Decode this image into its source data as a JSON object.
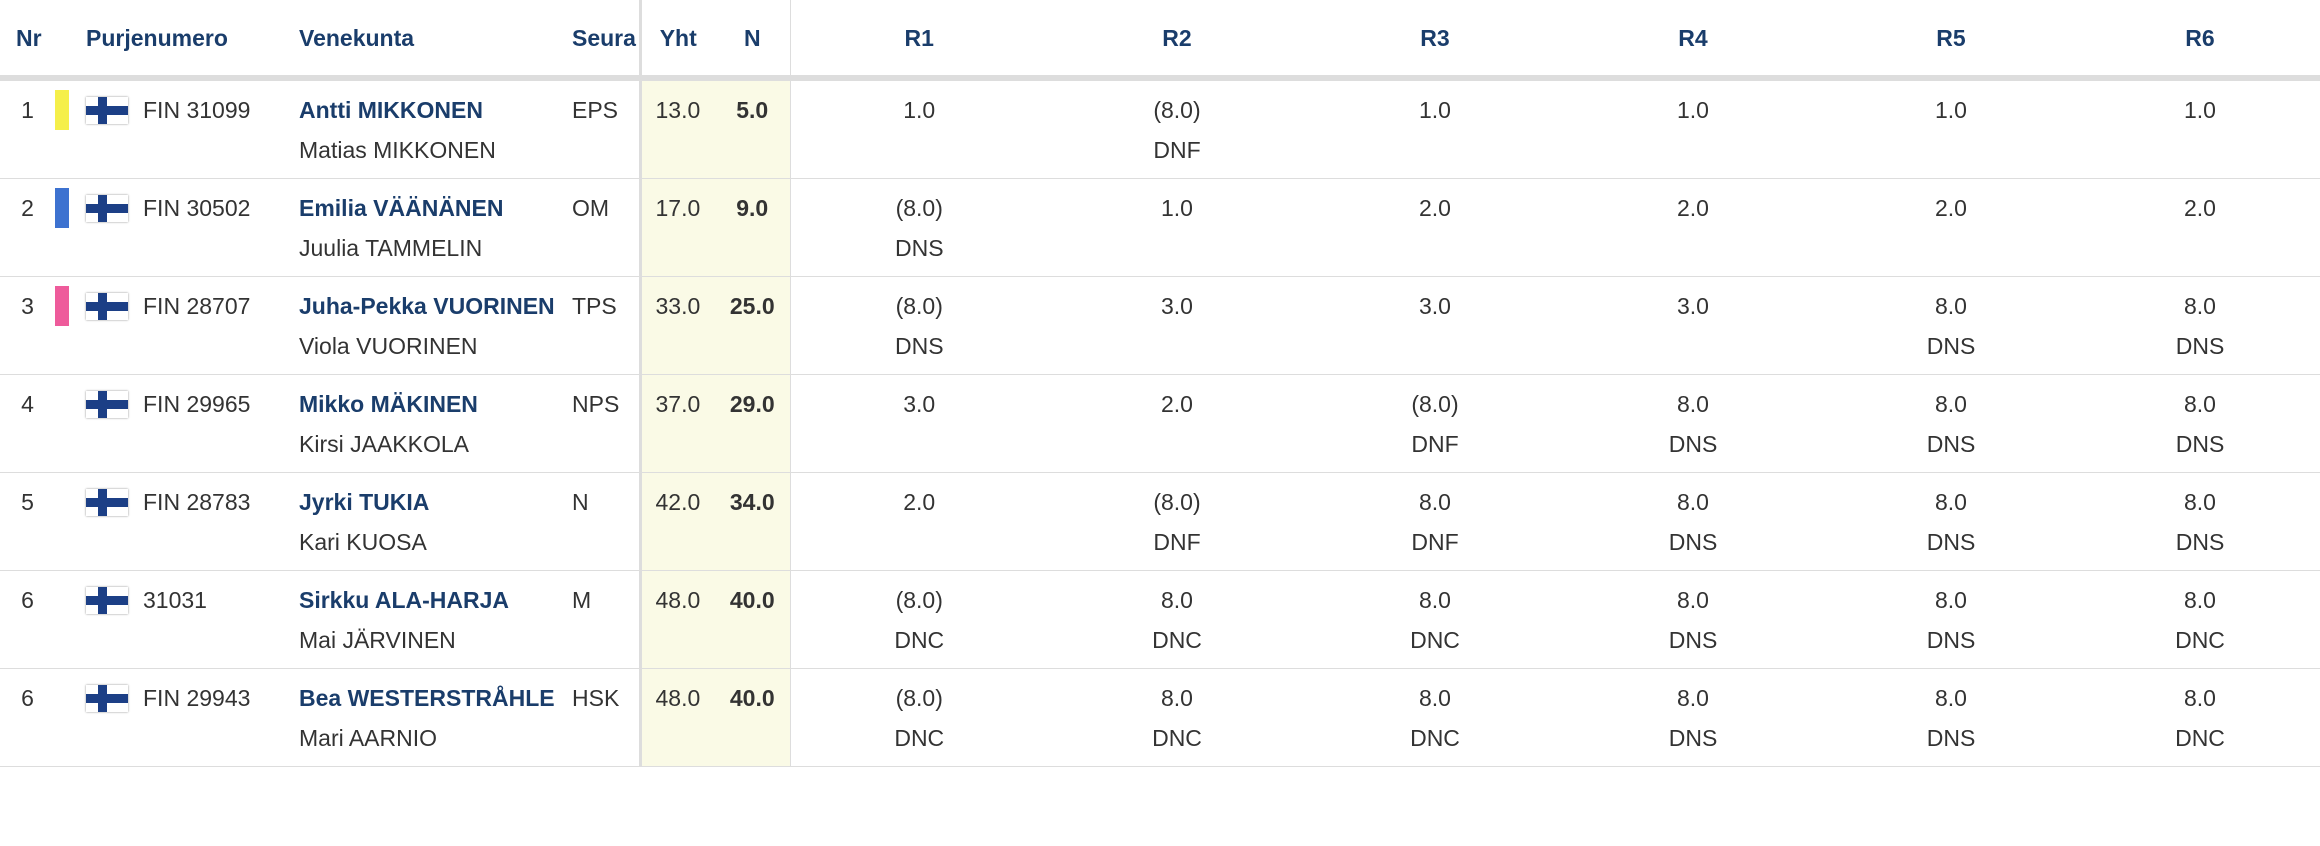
{
  "headers": {
    "nr": "Nr",
    "sail": "Purjenumero",
    "crew": "Venekunta",
    "club": "Seura",
    "total": "Yht",
    "net": "N",
    "races": [
      "R1",
      "R2",
      "R3",
      "R4",
      "R5",
      "R6"
    ]
  },
  "rows": [
    {
      "nr": "1",
      "color": "#f5ef4a",
      "flag_icon": "finland-flag-icon",
      "sail": "FIN 31099",
      "skipper": "Antti MIKKONEN",
      "crew": "Matias MIKKONEN",
      "club": "EPS",
      "total": "13.0",
      "net": "5.0",
      "races": [
        {
          "score": "1.0",
          "code": ""
        },
        {
          "score": "(8.0)",
          "code": "DNF"
        },
        {
          "score": "1.0",
          "code": ""
        },
        {
          "score": "1.0",
          "code": ""
        },
        {
          "score": "1.0",
          "code": ""
        },
        {
          "score": "1.0",
          "code": ""
        }
      ]
    },
    {
      "nr": "2",
      "color": "#3d72d0",
      "flag_icon": "finland-flag-icon",
      "sail": "FIN 30502",
      "skipper": "Emilia VÄÄNÄNEN",
      "crew": "Juulia TAMMELIN",
      "club": "OM",
      "total": "17.0",
      "net": "9.0",
      "races": [
        {
          "score": "(8.0)",
          "code": "DNS"
        },
        {
          "score": "1.0",
          "code": ""
        },
        {
          "score": "2.0",
          "code": ""
        },
        {
          "score": "2.0",
          "code": ""
        },
        {
          "score": "2.0",
          "code": ""
        },
        {
          "score": "2.0",
          "code": ""
        }
      ]
    },
    {
      "nr": "3",
      "color": "#ee5b9b",
      "flag_icon": "finland-flag-icon",
      "sail": "FIN 28707",
      "skipper": "Juha-Pekka VUORINEN",
      "crew": "Viola VUORINEN",
      "club": "TPS",
      "total": "33.0",
      "net": "25.0",
      "races": [
        {
          "score": "(8.0)",
          "code": "DNS"
        },
        {
          "score": "3.0",
          "code": ""
        },
        {
          "score": "3.0",
          "code": ""
        },
        {
          "score": "3.0",
          "code": ""
        },
        {
          "score": "8.0",
          "code": "DNS"
        },
        {
          "score": "8.0",
          "code": "DNS"
        }
      ]
    },
    {
      "nr": "4",
      "color": "",
      "flag_icon": "finland-flag-icon",
      "sail": "FIN 29965",
      "skipper": "Mikko MÄKINEN",
      "crew": "Kirsi JAAKKOLA",
      "club": "NPS",
      "total": "37.0",
      "net": "29.0",
      "races": [
        {
          "score": "3.0",
          "code": ""
        },
        {
          "score": "2.0",
          "code": ""
        },
        {
          "score": "(8.0)",
          "code": "DNF"
        },
        {
          "score": "8.0",
          "code": "DNS"
        },
        {
          "score": "8.0",
          "code": "DNS"
        },
        {
          "score": "8.0",
          "code": "DNS"
        }
      ]
    },
    {
      "nr": "5",
      "color": "",
      "flag_icon": "finland-flag-icon",
      "sail": "FIN 28783",
      "skipper": "Jyrki TUKIA",
      "crew": "Kari KUOSA",
      "club": "N",
      "total": "42.0",
      "net": "34.0",
      "races": [
        {
          "score": "2.0",
          "code": ""
        },
        {
          "score": "(8.0)",
          "code": "DNF"
        },
        {
          "score": "8.0",
          "code": "DNF"
        },
        {
          "score": "8.0",
          "code": "DNS"
        },
        {
          "score": "8.0",
          "code": "DNS"
        },
        {
          "score": "8.0",
          "code": "DNS"
        }
      ]
    },
    {
      "nr": "6",
      "color": "",
      "flag_icon": "finland-flag-icon",
      "sail": "31031",
      "skipper": "Sirkku ALA-HARJA",
      "crew": "Mai JÄRVINEN",
      "club": "M",
      "total": "48.0",
      "net": "40.0",
      "races": [
        {
          "score": "(8.0)",
          "code": "DNC"
        },
        {
          "score": "8.0",
          "code": "DNC"
        },
        {
          "score": "8.0",
          "code": "DNC"
        },
        {
          "score": "8.0",
          "code": "DNS"
        },
        {
          "score": "8.0",
          "code": "DNS"
        },
        {
          "score": "8.0",
          "code": "DNC"
        }
      ]
    },
    {
      "nr": "6",
      "color": "",
      "flag_icon": "finland-flag-icon",
      "sail": "FIN 29943",
      "skipper": "Bea WESTERSTRÅHLE",
      "crew": "Mari AARNIO",
      "club": "HSK",
      "total": "48.0",
      "net": "40.0",
      "races": [
        {
          "score": "(8.0)",
          "code": "DNC"
        },
        {
          "score": "8.0",
          "code": "DNC"
        },
        {
          "score": "8.0",
          "code": "DNC"
        },
        {
          "score": "8.0",
          "code": "DNS"
        },
        {
          "score": "8.0",
          "code": "DNS"
        },
        {
          "score": "8.0",
          "code": "DNC"
        }
      ]
    }
  ]
}
